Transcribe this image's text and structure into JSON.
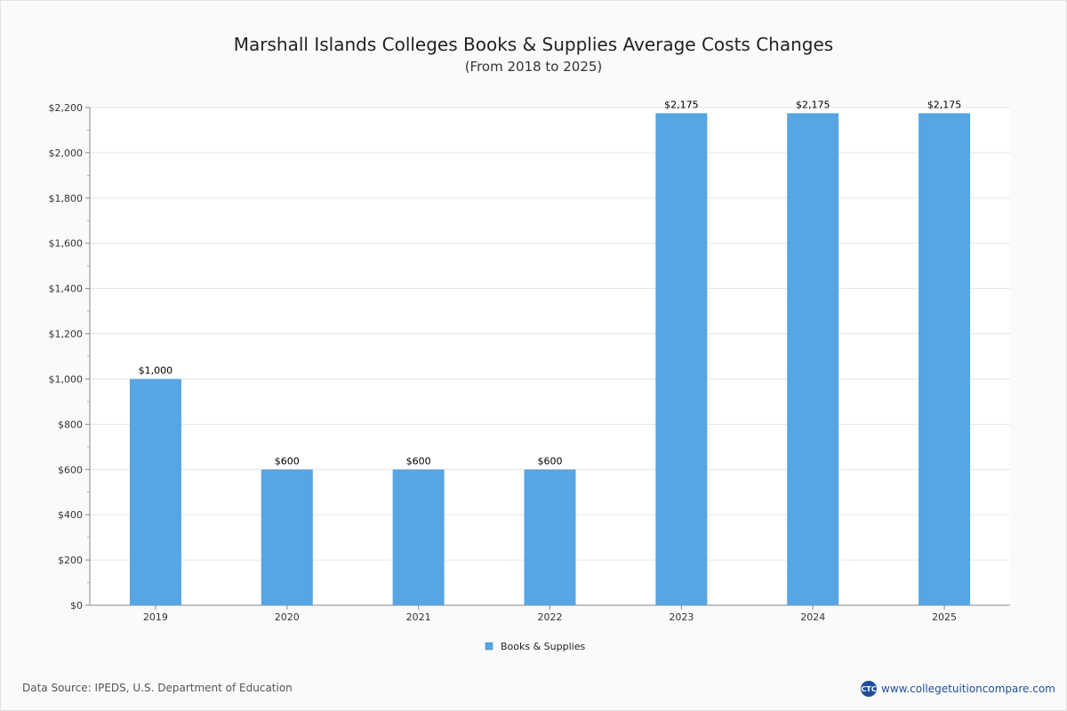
{
  "chart_data": {
    "type": "bar",
    "title": "Marshall Islands Colleges  Books & Supplies Average Costs Changes",
    "subtitle": "(From 2018 to 2025)",
    "categories": [
      "2019",
      "2020",
      "2021",
      "2022",
      "2023",
      "2024",
      "2025"
    ],
    "series": [
      {
        "name": "Books & Supplies",
        "values": [
          1000,
          600,
          600,
          600,
          2175,
          2175,
          2175
        ],
        "data_labels": [
          "$1,000",
          "$600",
          "$600",
          "$600",
          "$2,175",
          "$2,175",
          "$2,175"
        ],
        "color": "#57a5e2"
      }
    ],
    "ylim": [
      0,
      2200
    ],
    "yticks": [
      0,
      200,
      400,
      600,
      800,
      1000,
      1200,
      1400,
      1600,
      1800,
      2000,
      2200
    ],
    "ytick_labels": [
      "$0",
      "$200",
      "$400",
      "$600",
      "$800",
      "$1,000",
      "$1,200",
      "$1,400",
      "$1,600",
      "$1,800",
      "$2,000",
      "$2,200"
    ],
    "xlabel": "",
    "ylabel": "",
    "grid": true,
    "legend": "bottom-center"
  },
  "footer": {
    "source": "Data Source: IPEDS, U.S. Department of Education",
    "site": "www.collegetuitioncompare.com",
    "logo_text": "CTC",
    "logo_color": "#1f4e9c"
  }
}
